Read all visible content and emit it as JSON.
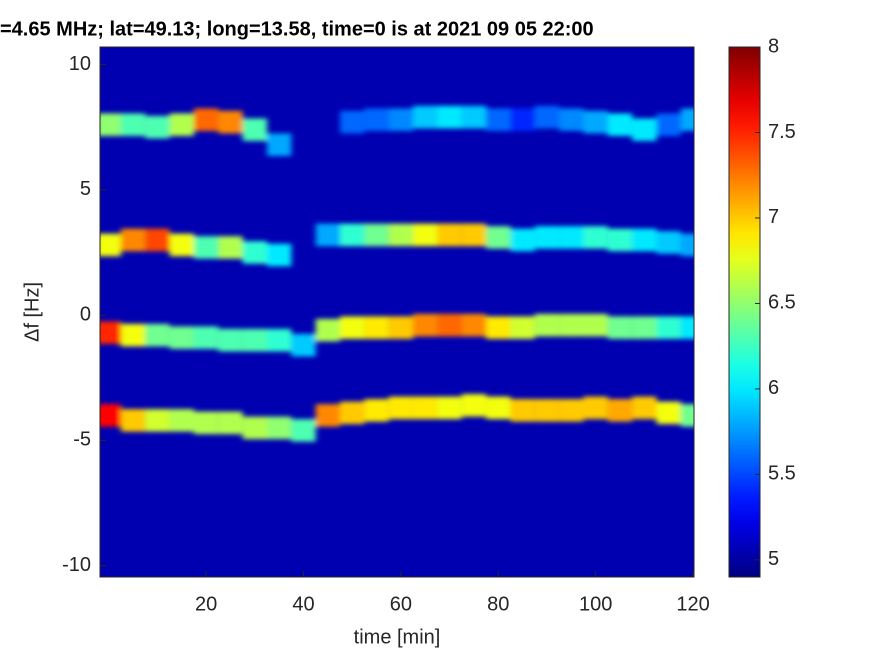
{
  "chart_data": {
    "type": "spectrogram",
    "title": "=4.65 MHz;  lat=49.13; long=13.58, time=0 is at 2021 09 05 22:00",
    "x_label": "time [min]",
    "y_label": "Δf [Hz]",
    "colormap": "jet",
    "xlim": [
      -1.8,
      120.2
    ],
    "xticks": [
      20,
      40,
      60,
      80,
      100,
      120
    ],
    "ylim": [
      -10.45,
      10.7
    ],
    "yticks": [
      -10,
      -5,
      0,
      5,
      10
    ],
    "clim": [
      4.9,
      8
    ],
    "cticks": [
      5,
      5.5,
      6,
      6.5,
      7,
      7.5,
      8
    ],
    "background": 5.05,
    "x": [
      0,
      5,
      10,
      15,
      20,
      25,
      30,
      35,
      40,
      45,
      50,
      55,
      60,
      65,
      70,
      75,
      80,
      85,
      90,
      95,
      100,
      105,
      110,
      115,
      120
    ],
    "series": [
      {
        "freq": [
          7.6,
          7.6,
          7.5,
          7.6,
          7.8,
          7.7,
          7.4,
          6.8,
          null,
          null,
          7.7,
          7.8,
          7.8,
          7.9,
          7.9,
          7.9,
          7.8,
          7.8,
          7.9,
          7.8,
          7.7,
          7.6,
          7.4,
          7.6,
          7.8
        ],
        "level": [
          6.5,
          6.3,
          6.3,
          6.6,
          7.3,
          7.2,
          6.3,
          5.8,
          null,
          null,
          5.6,
          5.6,
          5.7,
          5.9,
          6.0,
          5.9,
          5.6,
          5.4,
          5.6,
          5.7,
          5.8,
          6.0,
          6.0,
          5.6,
          5.8
        ]
      },
      {
        "freq": [
          2.8,
          3.0,
          3.0,
          2.8,
          2.7,
          2.7,
          2.5,
          2.4,
          null,
          3.2,
          3.2,
          3.2,
          3.2,
          3.2,
          3.2,
          3.2,
          3.1,
          3.0,
          3.1,
          3.1,
          3.1,
          3.0,
          3.0,
          2.9,
          2.8
        ],
        "level": [
          6.8,
          7.2,
          7.4,
          6.8,
          6.3,
          6.6,
          6.2,
          6.0,
          null,
          5.8,
          6.2,
          6.4,
          6.6,
          6.8,
          7.0,
          7.0,
          6.4,
          6.0,
          6.0,
          6.0,
          6.2,
          6.2,
          6.0,
          5.9,
          5.8
        ]
      },
      {
        "freq": [
          -0.7,
          -0.8,
          -0.8,
          -0.9,
          -0.9,
          -1.0,
          -1.0,
          -1.0,
          -1.2,
          -0.6,
          -0.5,
          -0.5,
          -0.5,
          -0.4,
          -0.4,
          -0.4,
          -0.5,
          -0.5,
          -0.4,
          -0.4,
          -0.4,
          -0.5,
          -0.5,
          -0.5,
          -0.5
        ],
        "level": [
          7.5,
          6.8,
          6.4,
          6.4,
          6.3,
          6.3,
          6.3,
          6.2,
          5.9,
          6.6,
          6.8,
          6.9,
          7.0,
          7.2,
          7.3,
          7.2,
          6.9,
          6.7,
          6.6,
          6.6,
          6.6,
          6.4,
          6.4,
          6.2,
          6.0
        ]
      },
      {
        "freq": [
          -4.0,
          -4.2,
          -4.2,
          -4.2,
          -4.3,
          -4.3,
          -4.5,
          -4.5,
          -4.6,
          -4.0,
          -3.9,
          -3.8,
          -3.7,
          -3.7,
          -3.7,
          -3.6,
          -3.7,
          -3.8,
          -3.8,
          -3.8,
          -3.7,
          -3.8,
          -3.7,
          -3.9,
          -4.0
        ],
        "level": [
          7.6,
          7.0,
          6.7,
          6.6,
          6.6,
          6.6,
          6.6,
          6.5,
          6.3,
          7.2,
          7.0,
          6.9,
          6.9,
          6.9,
          6.8,
          6.8,
          6.8,
          7.0,
          7.0,
          7.0,
          7.0,
          7.1,
          7.0,
          6.8,
          6.4
        ]
      }
    ]
  }
}
